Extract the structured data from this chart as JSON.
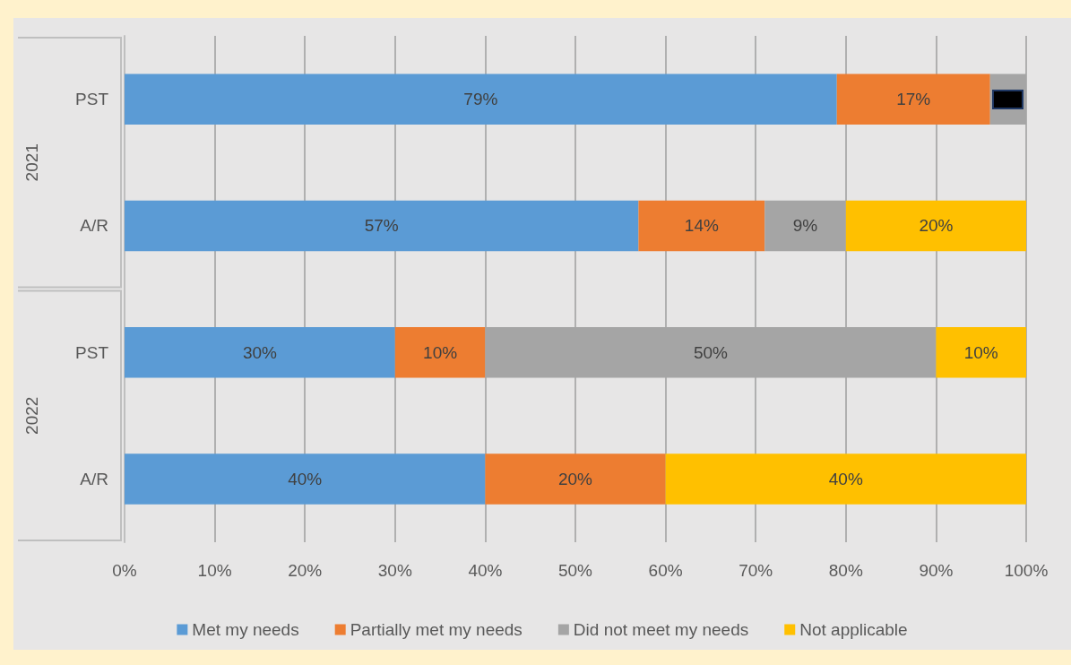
{
  "chart_data": {
    "type": "bar",
    "orientation": "horizontal",
    "stacked": true,
    "categories": [
      "PST",
      "A/R",
      "PST",
      "A/R"
    ],
    "annotations": [
      "2021",
      "2022"
    ],
    "series": [
      {
        "name": "Met my needs",
        "color": "#5b9bd5",
        "values": [
          79,
          57,
          30,
          40
        ],
        "value_labels": [
          "79%",
          "57%",
          "30%",
          "40%"
        ]
      },
      {
        "name": "Partially met my needs",
        "color": "#ed7d31",
        "values": [
          17,
          14,
          10,
          20
        ],
        "value_labels": [
          "17%",
          "14%",
          "10%",
          "20%"
        ]
      },
      {
        "name": "Did not meet my needs",
        "color": "#a5a5a5",
        "values": [
          4,
          9,
          50,
          0
        ],
        "value_labels": [
          null,
          "9%",
          "50%",
          null
        ]
      },
      {
        "name": "Not applicable",
        "color": "#ffc000",
        "values": [
          0,
          20,
          10,
          40
        ],
        "value_labels": [
          null,
          "20%",
          "10%",
          "40%"
        ]
      }
    ],
    "xlim": [
      0,
      100
    ],
    "xticks": [
      {
        "value": 0,
        "label": "0%"
      },
      {
        "value": 10,
        "label": "10%"
      },
      {
        "value": 20,
        "label": "20%"
      },
      {
        "value": 30,
        "label": "30%"
      },
      {
        "value": 40,
        "label": "40%"
      },
      {
        "value": 50,
        "label": "50%"
      },
      {
        "value": 60,
        "label": "60%"
      },
      {
        "value": 70,
        "label": "70%"
      },
      {
        "value": 80,
        "label": "80%"
      },
      {
        "value": 90,
        "label": "90%"
      },
      {
        "value": 100,
        "label": "100%"
      }
    ],
    "grid": "x",
    "legend": "bottom"
  }
}
